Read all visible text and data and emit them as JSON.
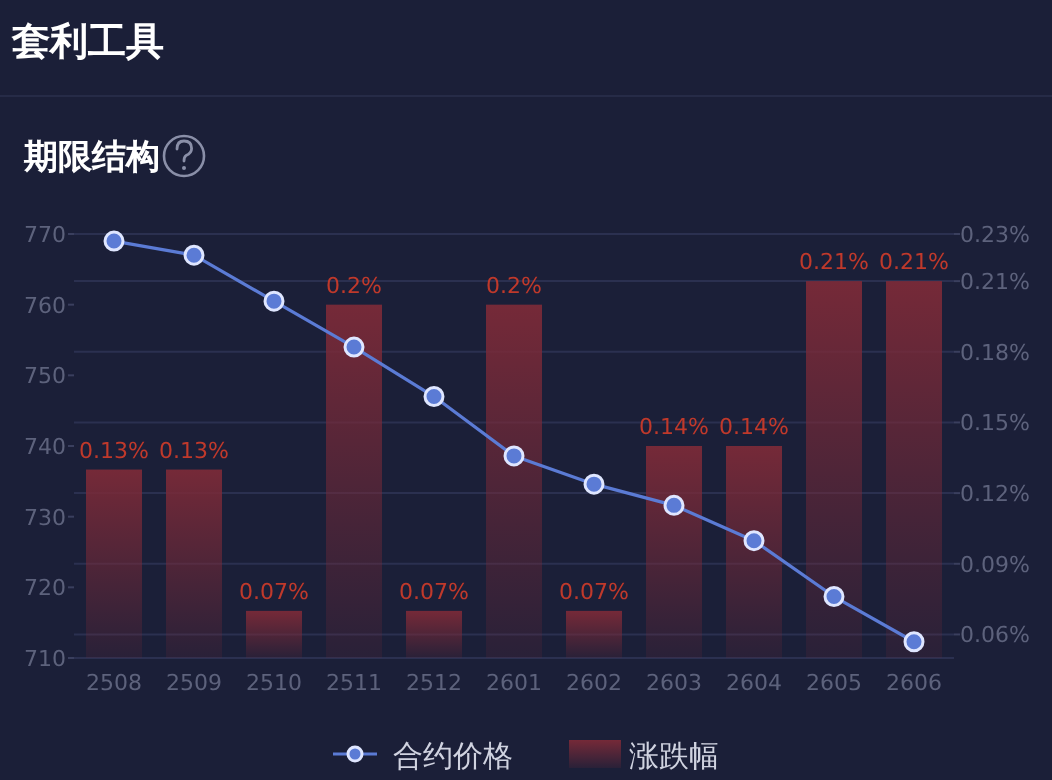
{
  "chart_data": {
    "type": "bar",
    "title": "套利工具",
    "subtitle": "期限结构",
    "categories": [
      "2508",
      "2509",
      "2510",
      "2511",
      "2512",
      "2601",
      "2602",
      "2603",
      "2604",
      "2605",
      "2606"
    ],
    "series": [
      {
        "name": "合约价格",
        "type": "line",
        "color": "#5b7bd5",
        "values": [
          769,
          767,
          760.5,
          754,
          747,
          738.6,
          734.6,
          731.6,
          726.6,
          718.7,
          712.3
        ]
      },
      {
        "name": "涨跌幅",
        "axis": "y2",
        "color": "#7a2a38",
        "values": [
          0.13,
          0.13,
          0.07,
          0.2,
          0.07,
          0.2,
          0.07,
          0.14,
          0.14,
          0.21,
          0.21
        ],
        "value_labels": [
          "0.13%",
          "0.13%",
          "0.07%",
          "0.2%",
          "0.07%",
          "0.2%",
          "0.07%",
          "0.14%",
          "0.14%",
          "0.21%",
          "0.21%"
        ]
      }
    ],
    "ylim": [
      710,
      770
    ],
    "yticks": [
      710,
      720,
      730,
      740,
      750,
      760,
      770
    ],
    "y2lim": [
      0.05,
      0.23
    ],
    "y2ticks": [
      {
        "value": 0.06,
        "label": "0.06%"
      },
      {
        "value": 0.09,
        "label": "0.09%"
      },
      {
        "value": 0.12,
        "label": "0.12%"
      },
      {
        "value": 0.15,
        "label": "0.15%"
      },
      {
        "value": 0.18,
        "label": "0.18%"
      },
      {
        "value": 0.21,
        "label": "0.21%"
      },
      {
        "value": 0.23,
        "label": "0.23%"
      }
    ],
    "grid": "y",
    "legend": "bottom",
    "marker": "circle",
    "line_style": "solid"
  }
}
